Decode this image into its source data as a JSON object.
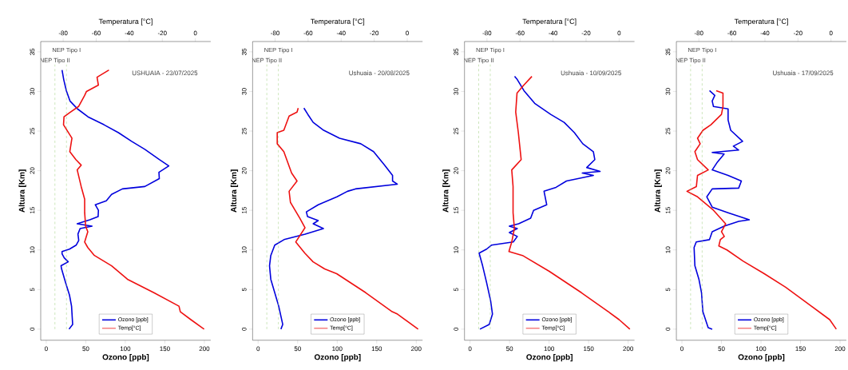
{
  "chart_data": [
    {
      "type": "line",
      "xlabel": "Ozono [ppb]",
      "x2label": "Temperatura [°C]",
      "ylabel": "Altura [Km]",
      "xlim": [
        -7,
        208
      ],
      "xticks": [
        0,
        50,
        100,
        150,
        200
      ],
      "x2lim": [
        -93.6,
        9.3
      ],
      "x2ticks": [
        -80,
        -60,
        -40,
        -20,
        0
      ],
      "ylim": [
        -1.4,
        36.3
      ],
      "yticks": [
        0,
        5,
        10,
        15,
        20,
        25,
        30,
        35
      ],
      "legend": "bottom",
      "line_style": "solid",
      "annotations": [
        "USHUAIA - 23/07/2025"
      ],
      "ref_lines": [
        {
          "axis": "x2",
          "value": -78,
          "label": "NEP Tipo I",
          "color": "#99cc77",
          "line_style": "dashed"
        },
        {
          "axis": "x2",
          "value": -85,
          "label": "NEP Tipo II",
          "color": "#99cc77",
          "line_style": "dashed"
        }
      ],
      "series": [
        {
          "name": "Ozono [ppb]",
          "color": "#0000dd",
          "x": [
            28.8,
            33.4,
            32,
            29.4,
            24.4,
            19.4,
            18.7,
            27.8,
            22.7,
            20,
            20,
            29.4,
            37.8,
            41.1,
            40.1,
            42.8,
            57.9,
            39.1,
            55.2,
            65.6,
            66,
            62,
            76,
            82.6,
            96.3,
            124.7,
            143,
            142.5,
            155,
            143,
            124.7,
            108,
            91.3,
            73,
            52.8,
            39.5,
            30,
            25.4,
            22.1,
            20
          ],
          "values": [
            0,
            0.6,
            2.9,
            4.3,
            5.9,
            7.6,
            8,
            8.5,
            9,
            9.5,
            9.8,
            10.1,
            10.6,
            11.2,
            12,
            12.7,
            13,
            13.3,
            13.8,
            14.2,
            15,
            15.7,
            16.2,
            17,
            17.7,
            18,
            19,
            19.8,
            20.6,
            21.4,
            22.7,
            23.7,
            24.8,
            25.8,
            26.8,
            27.8,
            28.8,
            30.1,
            31.5,
            32.7
          ]
        },
        {
          "name": "Temp[°C]",
          "color": "#ee1111",
          "axis": "x2",
          "x": [
            5.3,
            -2.7,
            -9.1,
            -9.9,
            -25.1,
            -41.1,
            -50.7,
            -61.1,
            -65.1,
            -67,
            -65.1,
            -66.4,
            -67,
            -67,
            -69.1,
            -71.5,
            -69.1,
            -72.3,
            -76,
            -74.7,
            -79.8,
            -79.5,
            -75.5,
            -70.7,
            -67,
            -65.9,
            -58.7,
            -59.5,
            -52.3
          ],
          "values": [
            0,
            1.2,
            2.2,
            2.9,
            4.6,
            6.3,
            8,
            9.3,
            10.3,
            11,
            12.3,
            13,
            14.7,
            16.4,
            18,
            20.1,
            20.7,
            21.4,
            22.4,
            24.1,
            25.8,
            26.8,
            27.4,
            28.1,
            29.5,
            30,
            30.8,
            31.8,
            32.7
          ]
        }
      ]
    },
    {
      "type": "line",
      "xlabel": "Ozono [ppb]",
      "x2label": "Temperatura [°C]",
      "ylabel": "Altura [Km]",
      "xlim": [
        -7,
        208
      ],
      "xticks": [
        0,
        50,
        100,
        150,
        200
      ],
      "x2lim": [
        -93.6,
        9.3
      ],
      "x2ticks": [
        -80,
        -60,
        -40,
        -20,
        0
      ],
      "ylim": [
        -1.4,
        36.3
      ],
      "yticks": [
        0,
        5,
        10,
        15,
        20,
        25,
        30,
        35
      ],
      "legend": "bottom",
      "line_style": "solid",
      "annotations": [
        "Ushuaia - 20/08/2025"
      ],
      "ref_lines": [
        {
          "axis": "x2",
          "value": -78,
          "label": "NEP Tipo I",
          "color": "#99cc77",
          "line_style": "dashed"
        },
        {
          "axis": "x2",
          "value": -85,
          "label": "NEP Tipo II",
          "color": "#99cc77",
          "line_style": "dashed"
        }
      ],
      "series": [
        {
          "name": "Ozono [ppb]",
          "color": "#0000dd",
          "x": [
            28.8,
            31.1,
            26,
            21,
            16,
            14.4,
            16,
            21,
            32.8,
            59.5,
            82.6,
            69.6,
            76,
            62.5,
            61,
            76,
            99.7,
            113,
            123,
            176,
            170,
            170,
            160,
            146,
            129.8,
            103,
            82.9,
            69.6,
            62.9,
            57.9
          ],
          "values": [
            0,
            0.6,
            2.9,
            4.6,
            6.3,
            8,
            9.3,
            10.6,
            11.3,
            12,
            12.7,
            13.3,
            13.7,
            14.2,
            14.8,
            15.7,
            16.7,
            17.4,
            17.7,
            18.3,
            18.7,
            19.4,
            20.7,
            22.4,
            23.4,
            24.1,
            25.1,
            26.1,
            27.1,
            27.9
          ]
        },
        {
          "name": "Temp[°C]",
          "color": "#ee1111",
          "axis": "x2",
          "x": [
            6.6,
            -5.9,
            -9.1,
            -25.1,
            -42.7,
            -50,
            -57,
            -62,
            -67.5,
            -61.9,
            -65,
            -70.7,
            -71.5,
            -66.7,
            -70,
            -74.7,
            -78.7,
            -78.7,
            -74.7,
            -71.5,
            -66.7,
            -66
          ],
          "values": [
            0,
            1.9,
            2.2,
            4.6,
            7,
            7.6,
            8.5,
            9.6,
            11,
            12.8,
            14,
            16,
            17.4,
            18.7,
            19.7,
            22.4,
            23.4,
            24.8,
            25.1,
            26.9,
            27.4,
            27.9
          ]
        }
      ]
    },
    {
      "type": "line",
      "xlabel": "Ozono [ppb]",
      "x2label": "Temperatura [°C]",
      "ylabel": "Altura [Km]",
      "xlim": [
        -7,
        208
      ],
      "xticks": [
        0,
        50,
        100,
        150,
        200
      ],
      "x2lim": [
        -93.6,
        9.3
      ],
      "x2ticks": [
        -80,
        -60,
        -40,
        -20,
        0
      ],
      "ylim": [
        -1.4,
        36.3
      ],
      "yticks": [
        0,
        5,
        10,
        15,
        20,
        25,
        30,
        35
      ],
      "legend": "bottom",
      "line_style": "solid",
      "annotations": [
        "Ushuaia - 10/09/2025"
      ],
      "ref_lines": [
        {
          "axis": "x2",
          "value": -78,
          "label": "NEP Tipo I",
          "color": "#99cc77",
          "line_style": "dashed"
        },
        {
          "axis": "x2",
          "value": -85,
          "label": "NEP Tipo II",
          "color": "#99cc77",
          "line_style": "dashed"
        }
      ],
      "series": [
        {
          "name": "Ozono [ppb]",
          "color": "#0000dd",
          "x": [
            12.5,
            24.3,
            28.4,
            26,
            20.9,
            15.9,
            11.5,
            20.9,
            27,
            54.7,
            59.8,
            49.7,
            59.8,
            49.7,
            61.5,
            76.7,
            80.4,
            97,
            93.6,
            108.8,
            122,
            156,
            142,
            164.5,
            147.6,
            157.8,
            156,
            142.6,
            132,
            119,
            102,
            81.8,
            68.2,
            59.8,
            56.4
          ],
          "values": [
            0,
            0.6,
            1.9,
            3.6,
            5.9,
            8,
            9.6,
            10.1,
            10.6,
            11,
            11.7,
            12.2,
            12.7,
            13,
            13.3,
            14,
            15,
            15.7,
            17.4,
            17.9,
            18.7,
            19.4,
            19.7,
            19.9,
            20.4,
            21.4,
            22.4,
            23.4,
            24.8,
            26.1,
            27.1,
            28.5,
            30.1,
            31.5,
            31.9
          ]
        },
        {
          "name": "Temp[°C]",
          "color": "#ee1111",
          "axis": "x2",
          "x": [
            6.5,
            0,
            -6.5,
            -22.8,
            -42.3,
            -58.5,
            -66.7,
            -65,
            -63.4,
            -64.2,
            -64.2,
            -65,
            -59.3,
            -61,
            -62.6,
            -61.8,
            -57.7,
            -52.8
          ],
          "values": [
            0,
            1.2,
            2.2,
            4.6,
            7.3,
            9.3,
            9.8,
            11,
            12.7,
            14.7,
            18,
            20.1,
            21.4,
            24.8,
            27.4,
            29.8,
            30.8,
            31.9
          ]
        }
      ]
    },
    {
      "type": "line",
      "xlabel": "Ozono [ppb]",
      "x2label": "Temperatura [°C]",
      "ylabel": "Altura [Km]",
      "xlim": [
        -7,
        208
      ],
      "xticks": [
        0,
        50,
        100,
        150,
        200
      ],
      "x2lim": [
        -93.6,
        9.3
      ],
      "x2ticks": [
        -80,
        -60,
        -40,
        -20,
        0
      ],
      "ylim": [
        -1.4,
        36.3
      ],
      "yticks": [
        0,
        5,
        10,
        15,
        20,
        25,
        30,
        35
      ],
      "legend": "bottom",
      "line_style": "solid",
      "annotations": [
        "Ushuaia - 17/09/2025"
      ],
      "ref_lines": [
        {
          "axis": "x2",
          "value": -78,
          "label": "NEP Tipo I",
          "color": "#99cc77",
          "line_style": "dashed"
        },
        {
          "axis": "x2",
          "value": -85,
          "label": "NEP Tipo II",
          "color": "#99cc77",
          "line_style": "dashed"
        }
      ],
      "series": [
        {
          "name": "Ozono [ppb]",
          "color": "#0000dd",
          "x": [
            38.3,
            33.2,
            26.5,
            24.8,
            21.5,
            16.4,
            15.4,
            18.1,
            34.9,
            38.3,
            53.4,
            71.8,
            85.2,
            58.4,
            38.3,
            31.5,
            38.3,
            71.8,
            75.2,
            58.4,
            38.3,
            45,
            53.4,
            38.3,
            71.8,
            65.1,
            76.8,
            61.7,
            58.4,
            58.4,
            39.9,
            38.3,
            41.6,
            34.9
          ],
          "values": [
            0,
            0.2,
            2.2,
            4.6,
            6.3,
            8,
            10.3,
            11,
            11.3,
            12.3,
            13,
            13.6,
            13.8,
            14.7,
            15.4,
            16.7,
            17.7,
            17.8,
            18.7,
            19.4,
            20.1,
            21.1,
            22.1,
            22.3,
            22.6,
            23.1,
            23.7,
            25.1,
            26.4,
            27.8,
            28.1,
            28.8,
            29.5,
            30.1
          ]
        },
        {
          "name": "Temp[°C]",
          "color": "#ee1111",
          "axis": "x2",
          "x": [
            3.2,
            -0.8,
            -14.5,
            -27.5,
            -40.4,
            -53.3,
            -63,
            -67.9,
            -67,
            -64.6,
            -66.3,
            -63.8,
            -71.1,
            -80.8,
            -87.2,
            -81.5,
            -80.8,
            -74.3,
            -80.8,
            -82.4,
            -79.2,
            -80.8,
            -77.5,
            -72.7,
            -66.3,
            -65.4,
            -65.4,
            -69.5
          ],
          "values": [
            0,
            1.2,
            3.3,
            5.3,
            7,
            8.6,
            10,
            10.5,
            11.3,
            11.7,
            12.3,
            13.3,
            15,
            16.7,
            17.4,
            18,
            19.4,
            20.1,
            21.4,
            22.4,
            23.4,
            24.1,
            25.1,
            25.8,
            27.1,
            28.1,
            29.8,
            30.1
          ]
        }
      ]
    }
  ]
}
